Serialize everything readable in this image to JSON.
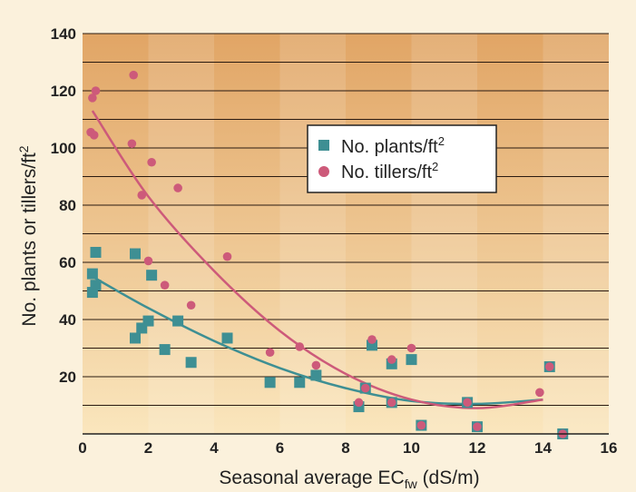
{
  "colors": {
    "page_background": "#fbf1dc",
    "plot_top": "#e1a565",
    "plot_bottom": "#fae6bd",
    "plants": "#3e8f93",
    "tillers": "#cd5a7a",
    "gridline": "#2a1a10"
  },
  "chart_data": {
    "type": "scatter",
    "title": "",
    "xlabel": "Seasonal average EC",
    "xlabel_sub": "fw",
    "xlabel_suffix": " (dS/m)",
    "ylabel": "No. plants or tillers/ft",
    "ylabel_sup": "2",
    "xlim": [
      0,
      16
    ],
    "ylim": [
      0,
      140
    ],
    "x_ticks": [
      "0",
      "2",
      "4",
      "6",
      "8",
      "10",
      "12",
      "14",
      "16"
    ],
    "y_ticks": [
      "20",
      "40",
      "60",
      "80",
      "100",
      "120",
      "140"
    ],
    "grid": true,
    "legend_position": "upper-right",
    "series": [
      {
        "name": "No. plants/ft",
        "name_sup": "2",
        "marker": "square",
        "points": [
          [
            0.3,
            56
          ],
          [
            0.3,
            49.5
          ],
          [
            0.4,
            52
          ],
          [
            0.4,
            63.5
          ],
          [
            1.6,
            33.5
          ],
          [
            1.6,
            63
          ],
          [
            1.8,
            37
          ],
          [
            2.0,
            39.5
          ],
          [
            2.1,
            55.5
          ],
          [
            2.5,
            29.5
          ],
          [
            2.9,
            39.5
          ],
          [
            3.3,
            25
          ],
          [
            4.4,
            33.5
          ],
          [
            5.7,
            18
          ],
          [
            6.6,
            18
          ],
          [
            7.1,
            20.5
          ],
          [
            8.4,
            9.5
          ],
          [
            8.6,
            16
          ],
          [
            8.8,
            31
          ],
          [
            9.4,
            24.5
          ],
          [
            9.4,
            11
          ],
          [
            10.0,
            26
          ],
          [
            10.3,
            3
          ],
          [
            11.7,
            11
          ],
          [
            12.0,
            2.5
          ],
          [
            14.2,
            23.5
          ],
          [
            14.6,
            0
          ]
        ],
        "trend": [
          [
            0.3,
            55
          ],
          [
            2,
            44
          ],
          [
            4,
            32.5
          ],
          [
            6,
            23
          ],
          [
            8,
            16
          ],
          [
            10,
            11.5
          ],
          [
            12,
            10.5
          ],
          [
            14,
            12
          ]
        ]
      },
      {
        "name": "No. tillers/ft",
        "name_sup": "2",
        "marker": "circle",
        "points": [
          [
            0.25,
            105.5
          ],
          [
            0.3,
            117.5
          ],
          [
            0.35,
            104.5
          ],
          [
            0.4,
            120
          ],
          [
            1.5,
            101.5
          ],
          [
            1.55,
            125.5
          ],
          [
            1.8,
            83.5
          ],
          [
            2.0,
            60.5
          ],
          [
            2.1,
            95
          ],
          [
            2.5,
            52
          ],
          [
            2.9,
            86
          ],
          [
            3.3,
            45
          ],
          [
            4.4,
            62
          ],
          [
            5.7,
            28.5
          ],
          [
            6.6,
            30.5
          ],
          [
            7.1,
            24
          ],
          [
            8.4,
            11
          ],
          [
            8.6,
            16
          ],
          [
            8.8,
            33
          ],
          [
            9.4,
            26
          ],
          [
            9.4,
            11
          ],
          [
            10.0,
            30
          ],
          [
            10.3,
            3
          ],
          [
            11.7,
            11
          ],
          [
            12.0,
            2.5
          ],
          [
            13.9,
            14.5
          ],
          [
            14.2,
            23.5
          ],
          [
            14.6,
            0
          ]
        ],
        "trend": [
          [
            0.3,
            113
          ],
          [
            2,
            83
          ],
          [
            4,
            57
          ],
          [
            6,
            36
          ],
          [
            8,
            21
          ],
          [
            10,
            12
          ],
          [
            12,
            9
          ],
          [
            14,
            12
          ]
        ]
      }
    ]
  }
}
